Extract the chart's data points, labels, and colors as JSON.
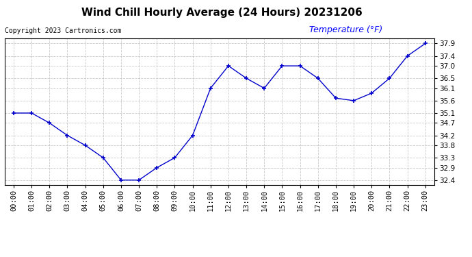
{
  "title": "Wind Chill Hourly Average (24 Hours) 20231206",
  "copyright_text": "Copyright 2023 Cartronics.com",
  "legend_label": "Temperature (°F)",
  "hours": [
    "00:00",
    "01:00",
    "02:00",
    "03:00",
    "04:00",
    "05:00",
    "06:00",
    "07:00",
    "08:00",
    "09:00",
    "10:00",
    "11:00",
    "12:00",
    "13:00",
    "14:00",
    "15:00",
    "16:00",
    "17:00",
    "18:00",
    "19:00",
    "20:00",
    "21:00",
    "22:00",
    "23:00"
  ],
  "values": [
    35.1,
    35.1,
    34.7,
    34.2,
    33.8,
    33.3,
    32.4,
    32.4,
    32.9,
    33.3,
    34.2,
    36.1,
    37.0,
    36.5,
    36.1,
    37.0,
    37.0,
    36.5,
    35.7,
    35.6,
    35.9,
    36.5,
    37.4,
    37.9
  ],
  "ylim_min": 32.2,
  "ylim_max": 38.1,
  "yticks": [
    32.4,
    32.9,
    33.3,
    33.8,
    34.2,
    34.7,
    35.1,
    35.6,
    36.1,
    36.5,
    37.0,
    37.4,
    37.9
  ],
  "line_color": "#0000cc",
  "marker_color": "#0000cc",
  "grid_color": "#bbbbbb",
  "bg_color": "#ffffff",
  "title_fontsize": 11,
  "copyright_fontsize": 7,
  "legend_fontsize": 9,
  "tick_fontsize": 7.5,
  "legend_color": "#0000ff"
}
